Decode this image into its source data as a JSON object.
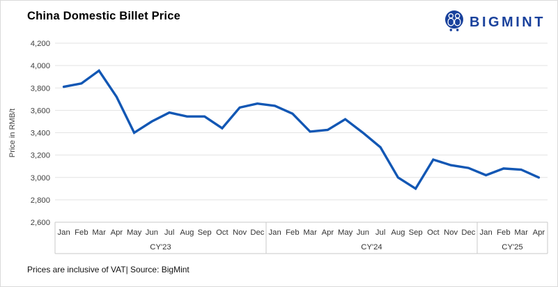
{
  "header": {
    "title": "China Domestic Billet Price",
    "logo_text": "BIGMINT"
  },
  "footer": {
    "note": "Prices are inclusive of VAT| Source: BigMint"
  },
  "colors": {
    "line": "#1257b4",
    "logo_navy": "#19419c",
    "gridline": "#e3e3e3",
    "axis_border": "#c9c9c9",
    "tick_text": "#404040",
    "month_text": "#333333"
  },
  "chart_data": {
    "type": "line",
    "title": "China Domestic Billet Price",
    "xlabel": "",
    "ylabel": "Price in RMB/t",
    "ylim": [
      2600,
      4200
    ],
    "ytick_interval": 200,
    "ytick_labels": [
      "4,200",
      "4,000",
      "3,800",
      "3,600",
      "3,400",
      "3,200",
      "3,000",
      "2,800",
      "2,600"
    ],
    "grid": "horizontal",
    "legend": "none",
    "line_color": "#1257b4",
    "groups": [
      {
        "label": "CY'23",
        "months": [
          "Jan",
          "Feb",
          "Mar",
          "Apr",
          "May",
          "Jun",
          "Jul",
          "Aug",
          "Sep",
          "Oct",
          "Nov",
          "Dec"
        ],
        "values": [
          3810,
          3840,
          3955,
          3720,
          3400,
          3500,
          3580,
          3545,
          3545,
          3440,
          3625,
          3660
        ]
      },
      {
        "label": "CY'24",
        "months": [
          "Jan",
          "Feb",
          "Mar",
          "Apr",
          "May",
          "Jun",
          "Jul",
          "Aug",
          "Sep",
          "Oct",
          "Nov",
          "Dec"
        ],
        "values": [
          3640,
          3570,
          3410,
          3425,
          3520,
          3400,
          3270,
          3000,
          2900,
          3160,
          3110,
          3085
        ]
      },
      {
        "label": "CY'25",
        "months": [
          "Jan",
          "Feb",
          "Mar",
          "Apr"
        ],
        "values": [
          3020,
          3080,
          3070,
          3000
        ]
      }
    ]
  }
}
